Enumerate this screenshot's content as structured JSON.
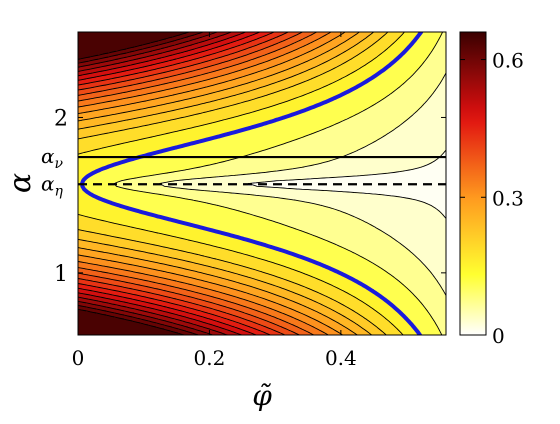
{
  "chart_data": {
    "type": "heatmap",
    "subtype": "filled-contour",
    "xlabel": "φ̃",
    "ylabel": "α",
    "xlim": [
      0,
      0.56
    ],
    "ylim": [
      0.6,
      2.55
    ],
    "x_ticks": [
      {
        "value": 0,
        "label": "0"
      },
      {
        "value": 0.2,
        "label": "0.2"
      },
      {
        "value": 0.4,
        "label": "0.4"
      }
    ],
    "y_ticks": [
      {
        "value": 1,
        "label": "1"
      },
      {
        "value": 2,
        "label": "2"
      }
    ],
    "colorbar": {
      "range": [
        0,
        0.66
      ],
      "colormap": [
        "#ffffff",
        "#ffff30",
        "#ff9b1f",
        "#e01010",
        "#3a0000"
      ],
      "ticks": [
        {
          "value": 0,
          "label": "0"
        },
        {
          "value": 0.3,
          "label": "0.3"
        },
        {
          "value": 0.6,
          "label": "0.6"
        }
      ]
    },
    "contour_levels": [
      0.015,
      0.05,
      0.09,
      0.135,
      0.17,
      0.205,
      0.235,
      0.265,
      0.295,
      0.325,
      0.355,
      0.385,
      0.415,
      0.445,
      0.475,
      0.505,
      0.535,
      0.565,
      0.595,
      0.625
    ],
    "highlighted_level": {
      "value": 0.135,
      "color": "#1a1adc"
    },
    "annotations": [
      {
        "label": "αν",
        "y": 1.745,
        "line_style": "solid"
      },
      {
        "label": "αη",
        "y": 1.57,
        "line_style": "dashed"
      }
    ]
  }
}
